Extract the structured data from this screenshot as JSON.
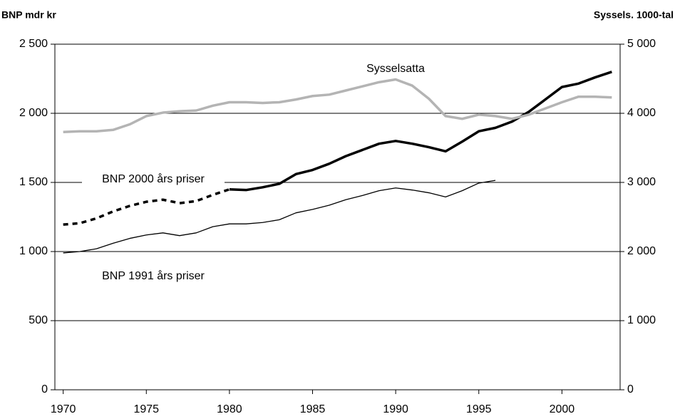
{
  "chart_data": {
    "type": "line",
    "ylabel": "BNP mdr kr",
    "y2label": "Syssels. 1000-tal",
    "annotations": [
      "Sysselsatta",
      "BNP 2000 års priser",
      "BNP 1991 års priser"
    ],
    "x": [
      1970,
      1971,
      1972,
      1973,
      1974,
      1975,
      1976,
      1977,
      1978,
      1979,
      1980,
      1981,
      1982,
      1983,
      1984,
      1985,
      1986,
      1987,
      1988,
      1989,
      1990,
      1991,
      1992,
      1993,
      1994,
      1995,
      1996,
      1997,
      1998,
      1999,
      2000,
      2001,
      2002,
      2003
    ],
    "xlim": [
      1969.5,
      2003.5
    ],
    "xticks": [
      1970,
      1975,
      1980,
      1985,
      1990,
      1995,
      2000
    ],
    "ylim": [
      0,
      2500
    ],
    "yticks": [
      0,
      500,
      {
        "value": 1000,
        "label": "1 000"
      },
      {
        "value": 1500,
        "label": "1 500"
      },
      {
        "value": 2000,
        "label": "2 000"
      },
      {
        "value": 2500,
        "label": "2 500"
      }
    ],
    "y2lim": [
      0,
      5000
    ],
    "y2ticks": [
      0,
      {
        "value": 1000,
        "label": "1 000"
      },
      {
        "value": 2000,
        "label": "2 000"
      },
      {
        "value": 3000,
        "label": "3 000"
      },
      {
        "value": 4000,
        "label": "4 000"
      },
      {
        "value": 5000,
        "label": "5 000"
      }
    ],
    "grid": true,
    "series": [
      {
        "name": "BNP 1991 års priser",
        "color": "#000000",
        "axis": "y",
        "values": [
          990,
          1000,
          1020,
          1060,
          1095,
          1120,
          1135,
          1115,
          1135,
          1180,
          1200,
          1200,
          1210,
          1230,
          1280,
          1305,
          1335,
          1375,
          1405,
          1440,
          1460,
          1445,
          1425,
          1395,
          1440,
          1495,
          1515,
          null,
          null,
          null,
          null,
          null,
          null,
          null
        ]
      },
      {
        "name": "BNP 2000 års priser",
        "color": "#000000",
        "axis": "y",
        "dashed_until": 1980,
        "values": [
          1195,
          1205,
          1240,
          1290,
          1330,
          1360,
          1375,
          1350,
          1365,
          1410,
          1450,
          1445,
          1465,
          1490,
          1560,
          1590,
          1635,
          1690,
          1735,
          1780,
          1800,
          1780,
          1755,
          1725,
          1795,
          1870,
          1895,
          1940,
          2010,
          2100,
          2190,
          2215,
          2260,
          2300
        ]
      },
      {
        "name": "Sysselsatta",
        "color": "#b4b4b4",
        "axis": "y2",
        "values": [
          3730,
          3740,
          3740,
          3760,
          3840,
          3960,
          4010,
          4030,
          4040,
          4110,
          4160,
          4160,
          4150,
          4160,
          4200,
          4250,
          4270,
          4330,
          4390,
          4450,
          4490,
          4400,
          4210,
          3960,
          3920,
          3980,
          3960,
          3920,
          3980,
          4070,
          4160,
          4240,
          4240,
          4230
        ]
      }
    ]
  }
}
